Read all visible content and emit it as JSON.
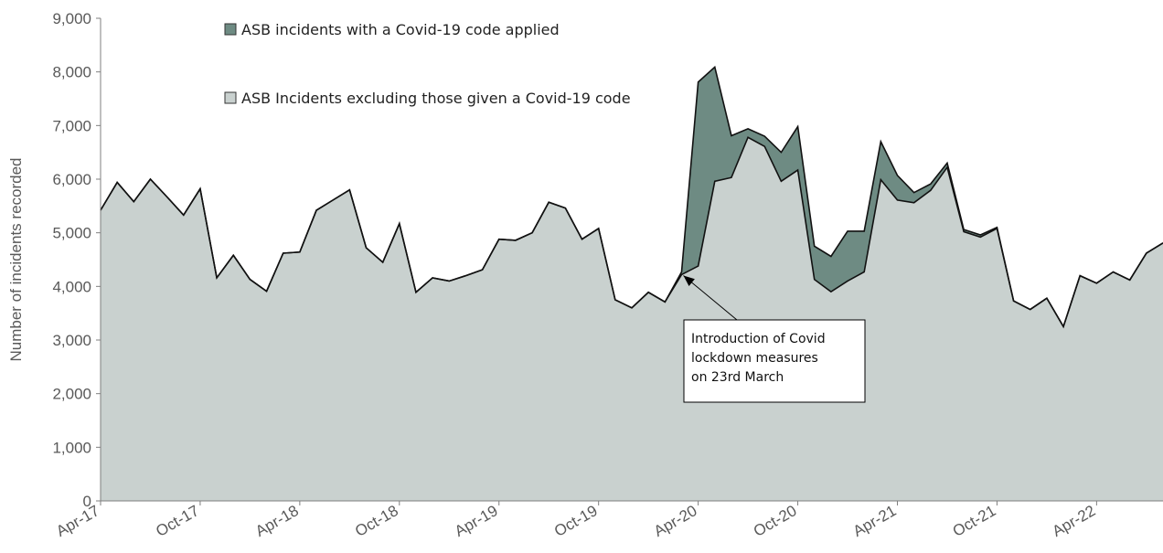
{
  "chart_data": {
    "type": "area",
    "stacked": true,
    "ylabel": "Number of incidents recorded",
    "ylim": [
      0,
      9000
    ],
    "y_ticks": [
      "0",
      "1,000",
      "2,000",
      "3,000",
      "4,000",
      "5,000",
      "6,000",
      "7,000",
      "8,000",
      "9,000"
    ],
    "x_tick_labels": [
      "Apr-17",
      "Oct-17",
      "Apr-18",
      "Oct-18",
      "Apr-19",
      "Oct-19",
      "Apr-20",
      "Oct-20",
      "Apr-21",
      "Oct-21",
      "Apr-22"
    ],
    "x_start": "Apr-17",
    "x_end": "Sep-22",
    "legend_position": "top",
    "series": [
      {
        "name": "ASB Incidents excluding those given a Covid-19 code",
        "color": "#c9d1cf",
        "values": [
          5420,
          5940,
          5580,
          6000,
          5670,
          5330,
          5820,
          4160,
          4580,
          4130,
          3910,
          4620,
          4640,
          5420,
          5610,
          5800,
          4720,
          4450,
          5170,
          3890,
          4160,
          4100,
          4200,
          4310,
          4880,
          4860,
          5000,
          5570,
          5460,
          4880,
          5080,
          3750,
          3600,
          3890,
          3710,
          4220,
          4380,
          5960,
          6030,
          6780,
          6610,
          5960,
          6170,
          4130,
          3900,
          4100,
          4270,
          5990,
          5610,
          5560,
          5790,
          6220,
          5020,
          4920,
          5080,
          3730,
          3570,
          3780,
          3250,
          4200,
          4060,
          4270,
          4120,
          4620,
          4810
        ]
      },
      {
        "name": "ASB incidents with a Covid-19 code applied",
        "color": "#6e8b83",
        "values": [
          0,
          0,
          0,
          0,
          0,
          0,
          0,
          0,
          0,
          0,
          0,
          0,
          0,
          0,
          0,
          0,
          0,
          0,
          0,
          0,
          0,
          0,
          0,
          0,
          0,
          0,
          0,
          0,
          0,
          0,
          0,
          0,
          0,
          0,
          0,
          50,
          3430,
          2130,
          780,
          160,
          190,
          540,
          810,
          620,
          660,
          930,
          760,
          710,
          460,
          190,
          120,
          80,
          40,
          40,
          20,
          0,
          0,
          0,
          0,
          0,
          0,
          0,
          0,
          0,
          0
        ]
      }
    ],
    "legend": [
      {
        "label": "ASB incidents with a Covid-19 code applied",
        "color": "#6e8b83"
      },
      {
        "label": "ASB Incidents excluding those given a Covid-19 code",
        "color": "#c9d1cf"
      }
    ],
    "annotation": {
      "lines": [
        "Introduction of Covid",
        "lockdown measures",
        "on 23rd March"
      ],
      "points_to": "Mar-20"
    }
  }
}
